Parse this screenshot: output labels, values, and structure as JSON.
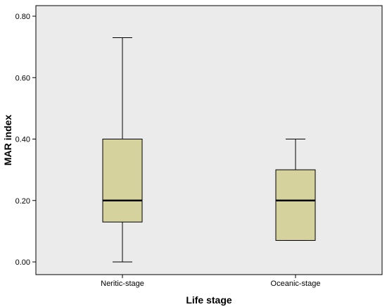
{
  "chart_data": {
    "type": "box",
    "xlabel": "Life stage",
    "ylabel": "MAR index",
    "ylim": [
      0.0,
      0.8
    ],
    "yticks": [
      "0.00",
      "0.20",
      "0.40",
      "0.60",
      "0.80"
    ],
    "grid": false,
    "colors": {
      "plot_background": "#ebebeb",
      "box_fill": "#d5d29d",
      "line": "#000000"
    },
    "categories": [
      "Neritic-stage",
      "Oceanic-stage"
    ],
    "boxes": [
      {
        "category": "Neritic-stage",
        "min": 0.0,
        "q1": 0.13,
        "median": 0.2,
        "q3": 0.4,
        "max": 0.73
      },
      {
        "category": "Oceanic-stage",
        "min": 0.07,
        "q1": 0.07,
        "median": 0.2,
        "q3": 0.3,
        "max": 0.4
      }
    ]
  }
}
